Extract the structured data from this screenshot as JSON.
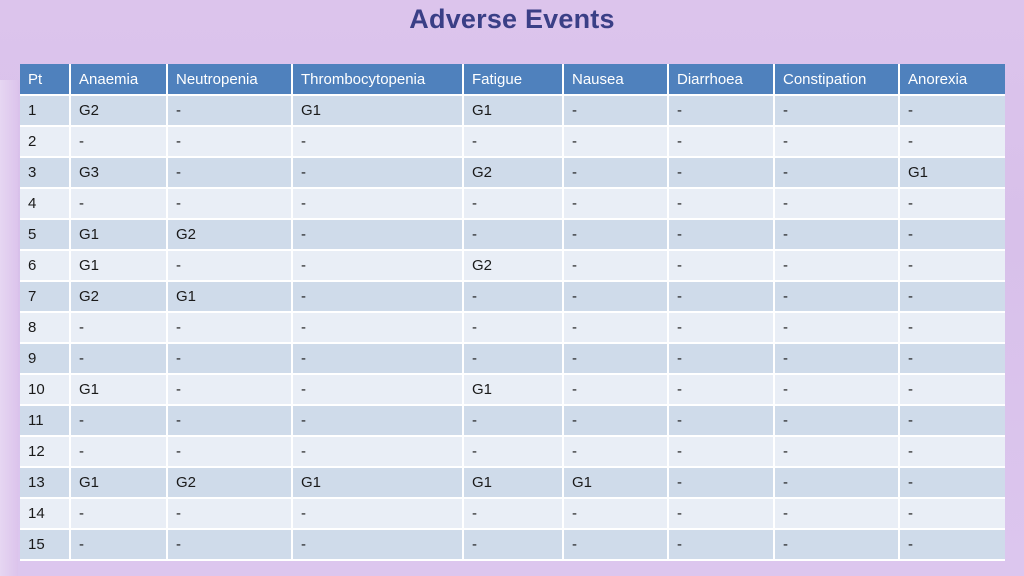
{
  "slide": {
    "title": "Adverse Events"
  },
  "table": {
    "headers": [
      "Pt",
      "Anaemia",
      "Neutropenia",
      "Thrombocytopenia",
      "Fatigue",
      "Nausea",
      "Diarrhoea",
      "Constipation",
      "Anorexia"
    ],
    "rows": [
      [
        "1",
        "G2",
        "-",
        "G1",
        "G1",
        "-",
        "-",
        "-",
        "-"
      ],
      [
        "2",
        "-",
        "-",
        "-",
        "-",
        "-",
        "-",
        "-",
        "-"
      ],
      [
        "3",
        "G3",
        "-",
        "-",
        "G2",
        "-",
        "-",
        "-",
        "G1"
      ],
      [
        "4",
        "-",
        "-",
        "-",
        "-",
        "-",
        "-",
        "-",
        "-"
      ],
      [
        "5",
        "G1",
        "G2",
        "-",
        "-",
        "-",
        "-",
        "-",
        "-"
      ],
      [
        "6",
        "G1",
        "-",
        "-",
        "G2",
        "-",
        "-",
        "-",
        "-"
      ],
      [
        "7",
        "G2",
        "G1",
        "-",
        "-",
        "-",
        "-",
        "-",
        "-"
      ],
      [
        "8",
        "-",
        "-",
        "-",
        "-",
        "-",
        "-",
        "-",
        "-"
      ],
      [
        "9",
        "-",
        "-",
        "-",
        "-",
        "-",
        "-",
        "-",
        "-"
      ],
      [
        "10",
        "G1",
        "-",
        "-",
        "G1",
        "-",
        "-",
        "-",
        "-"
      ],
      [
        "11",
        "-",
        "-",
        "-",
        "-",
        "-",
        "-",
        "-",
        "-"
      ],
      [
        "12",
        "-",
        "-",
        "-",
        "-",
        "-",
        "-",
        "-",
        "-"
      ],
      [
        "13",
        "G1",
        "G2",
        "G1",
        "G1",
        "G1",
        "-",
        "-",
        "-"
      ],
      [
        "14",
        "-",
        "-",
        "-",
        "-",
        "-",
        "-",
        "-",
        "-"
      ],
      [
        "15",
        "-",
        "-",
        "-",
        "-",
        "-",
        "-",
        "-",
        "-"
      ]
    ]
  },
  "colors": {
    "header_bg": "#4f81bd",
    "row_odd_bg": "#cfdbea",
    "row_even_bg": "#e9eef6",
    "title_color": "#3a3f86",
    "slide_bg": "#dcc4ec"
  }
}
